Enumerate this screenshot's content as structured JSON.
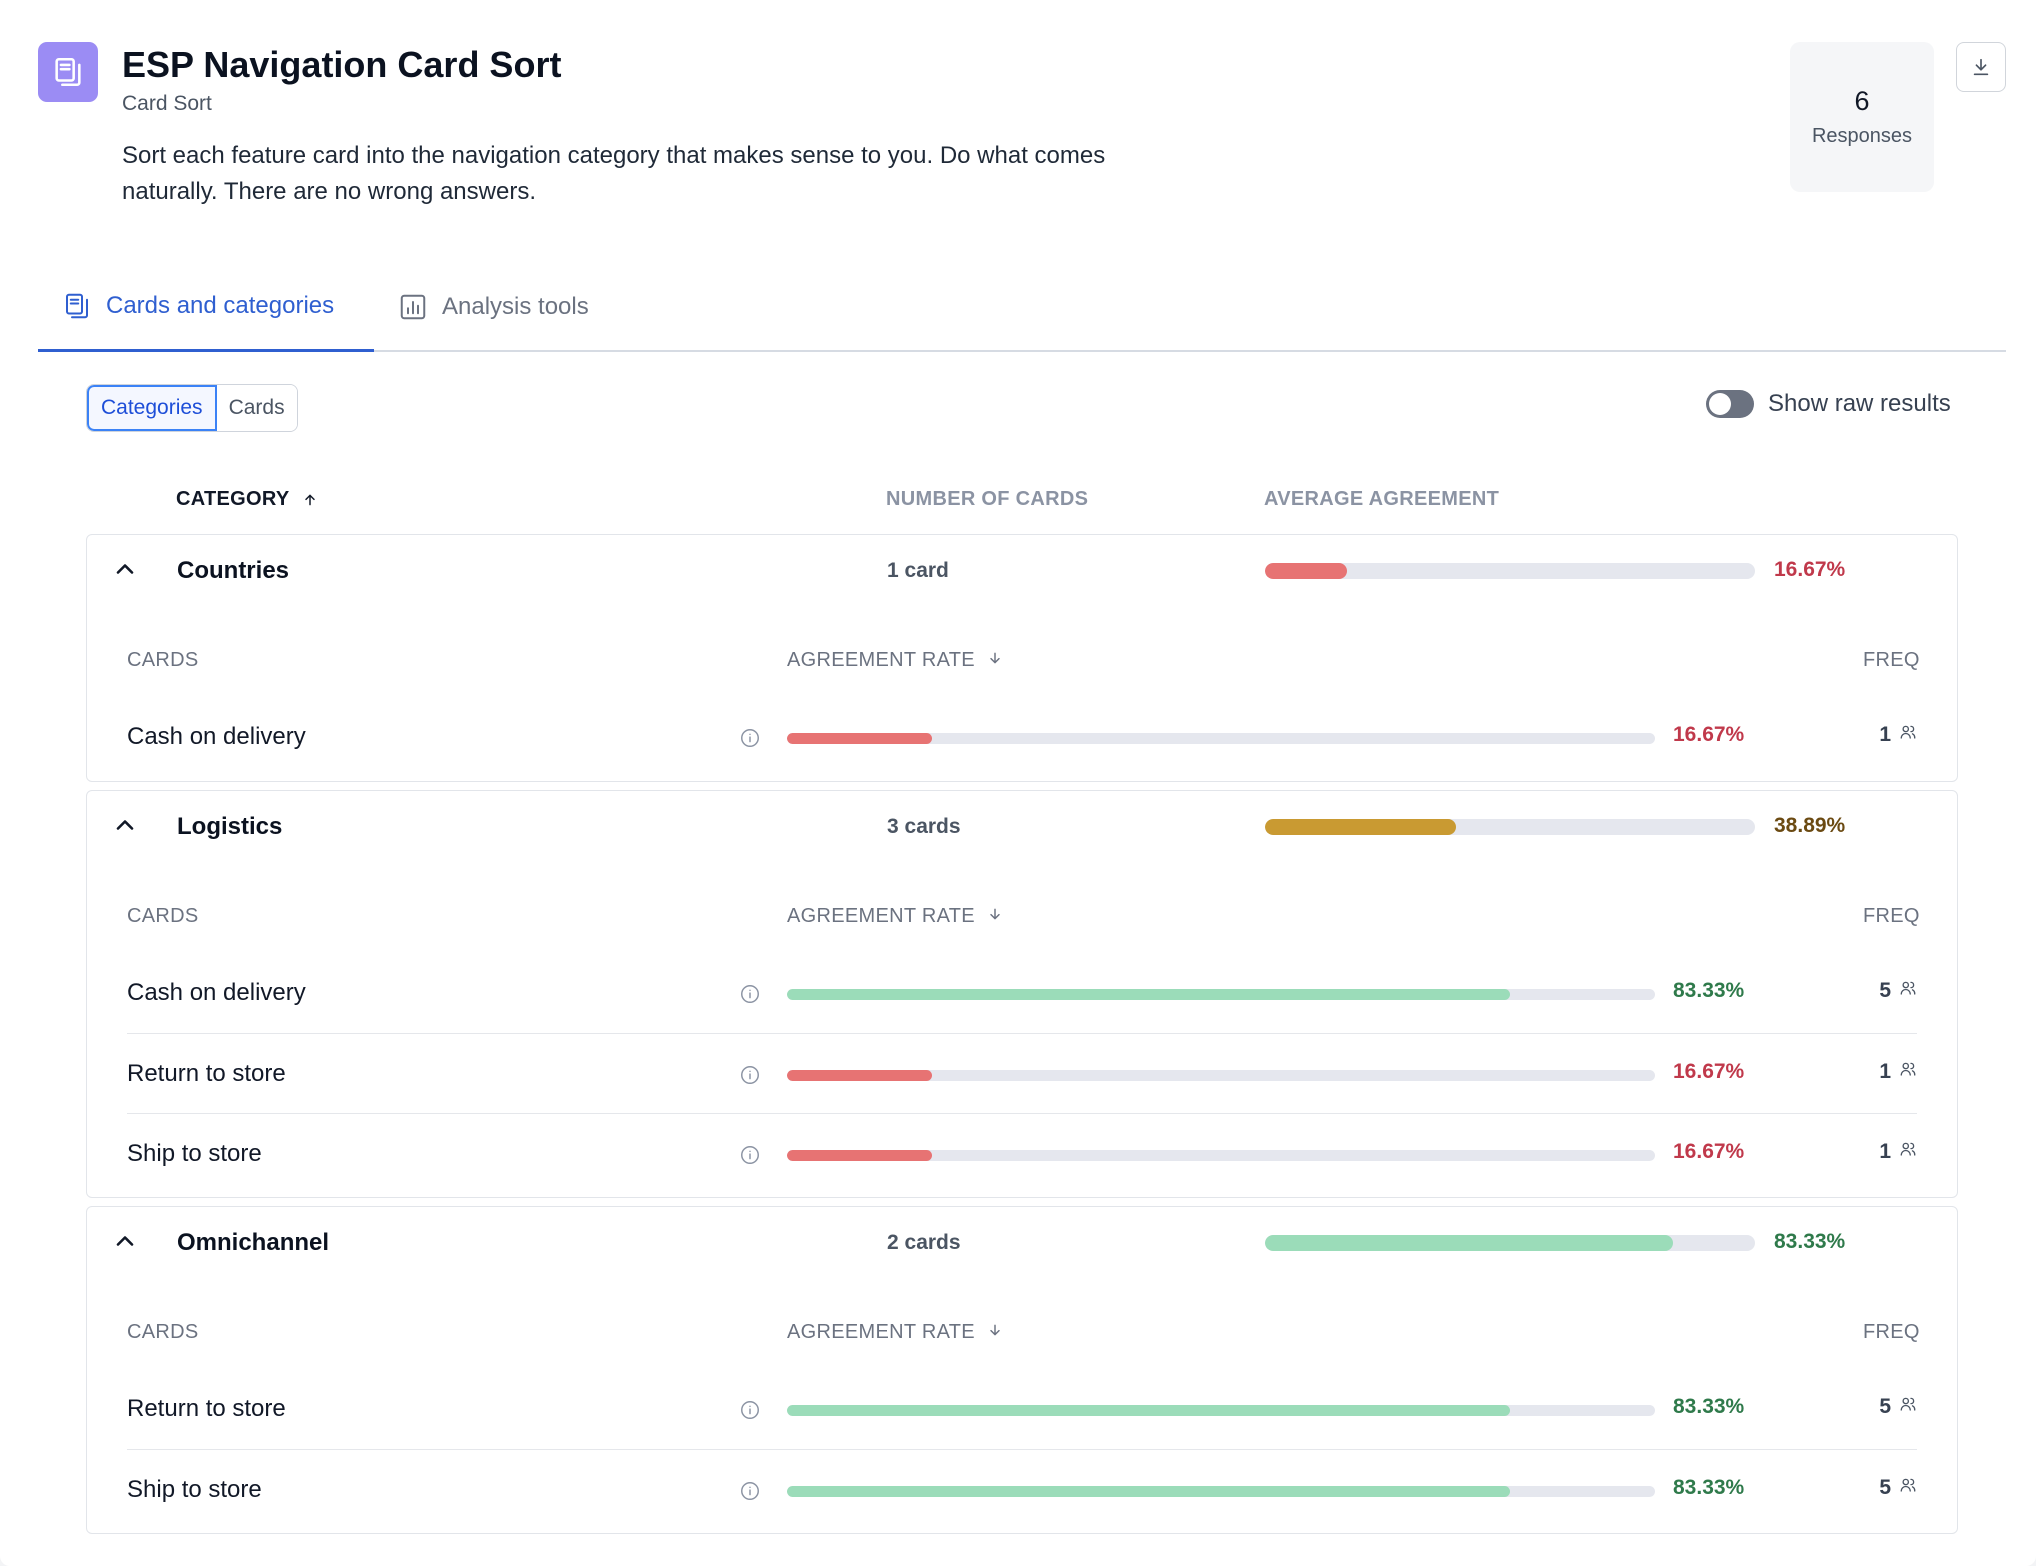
{
  "header": {
    "title": "ESP Navigation Card Sort",
    "type": "Card Sort",
    "description": "Sort each feature card into the navigation category that makes sense to you. Do what comes naturally. There are no wrong answers.",
    "responses_count": "6",
    "responses_label": "Responses",
    "icons": {
      "study": "card-sort-icon",
      "download": "download-icon"
    }
  },
  "tabs": [
    {
      "label": "Cards and categories",
      "icon": "cards-icon",
      "active": true
    },
    {
      "label": "Analysis tools",
      "icon": "bar-chart-icon",
      "active": false
    }
  ],
  "view_toggle": {
    "categories": "Categories",
    "cards": "Cards",
    "selected": "Categories"
  },
  "raw_results": {
    "label": "Show raw results",
    "enabled": false
  },
  "columns": {
    "category": "CATEGORY",
    "number_of_cards": "NUMBER OF CARDS",
    "average_agreement": "AVERAGE AGREEMENT",
    "cards": "CARDS",
    "agreement_rate": "AGREEMENT RATE",
    "freq": "FREQ"
  },
  "colors": {
    "low": "#e77373",
    "low_text": "#c0394b",
    "mid": "#c99a32",
    "mid_text": "#6b4a12",
    "high": "#9bdcb9",
    "high_text": "#2f7a4b",
    "accent": "#2f5fd0"
  },
  "categories": [
    {
      "name": "Countries",
      "count_label": "1 card",
      "avg_agreement": 16.67,
      "avg_label": "16.67%",
      "level": "low",
      "cards": [
        {
          "name": "Cash on delivery",
          "rate": 16.67,
          "rate_label": "16.67%",
          "freq": "1",
          "level": "low"
        }
      ]
    },
    {
      "name": "Logistics",
      "count_label": "3 cards",
      "avg_agreement": 38.89,
      "avg_label": "38.89%",
      "level": "mid",
      "cards": [
        {
          "name": "Cash on delivery",
          "rate": 83.33,
          "rate_label": "83.33%",
          "freq": "5",
          "level": "high"
        },
        {
          "name": "Return to store",
          "rate": 16.67,
          "rate_label": "16.67%",
          "freq": "1",
          "level": "low"
        },
        {
          "name": "Ship to store",
          "rate": 16.67,
          "rate_label": "16.67%",
          "freq": "1",
          "level": "low"
        }
      ]
    },
    {
      "name": "Omnichannel",
      "count_label": "2 cards",
      "avg_agreement": 83.33,
      "avg_label": "83.33%",
      "level": "high",
      "cards": [
        {
          "name": "Return to store",
          "rate": 83.33,
          "rate_label": "83.33%",
          "freq": "5",
          "level": "high"
        },
        {
          "name": "Ship to store",
          "rate": 83.33,
          "rate_label": "83.33%",
          "freq": "5",
          "level": "high"
        }
      ]
    }
  ]
}
